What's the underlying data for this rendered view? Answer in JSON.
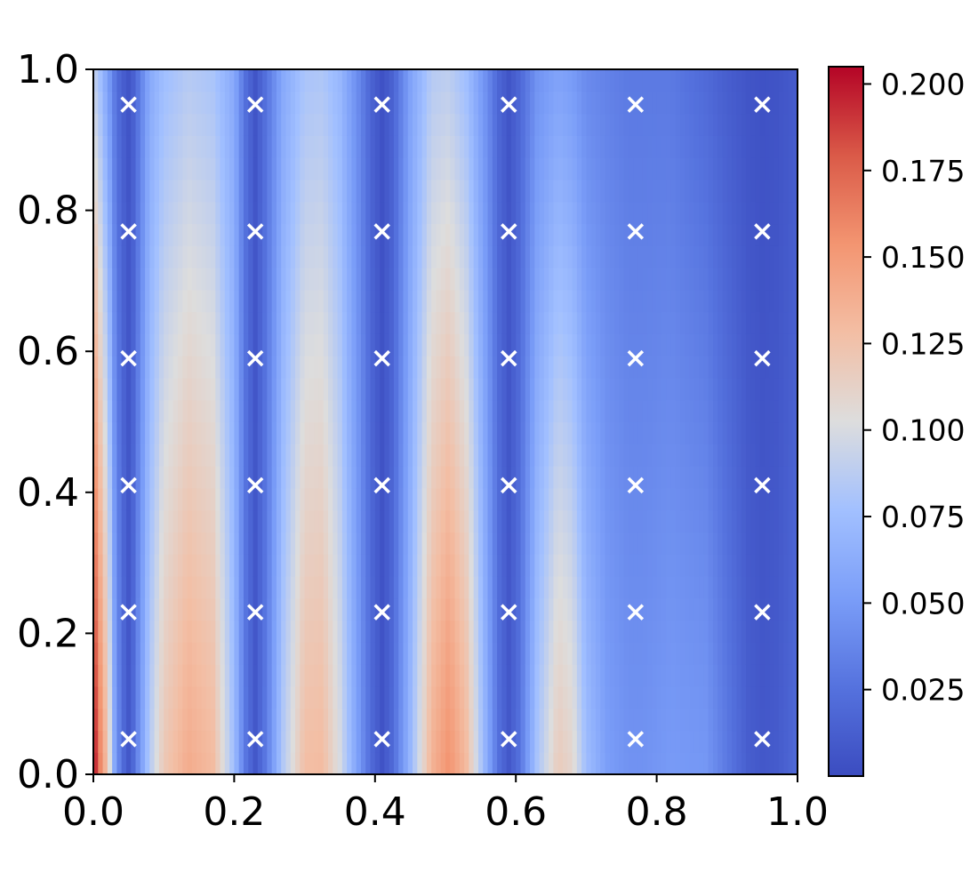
{
  "chart_data": {
    "type": "heatmap",
    "title": "",
    "xlabel": "",
    "ylabel": "",
    "xlim": [
      0.0,
      1.0
    ],
    "ylim": [
      0.0,
      1.0
    ],
    "xticks": [
      "0.0",
      "0.2",
      "0.4",
      "0.6",
      "0.8",
      "1.0"
    ],
    "yticks": [
      "0.0",
      "0.2",
      "0.4",
      "0.6",
      "0.8",
      "1.0"
    ],
    "grid": false,
    "colormap": "coolwarm",
    "colorbar": {
      "vmin": 0.0,
      "vmax": 0.205,
      "ticks": [
        "0.025",
        "0.050",
        "0.075",
        "0.100",
        "0.125",
        "0.150",
        "0.175",
        "0.200"
      ]
    },
    "profile_x": [
      0.0,
      0.004,
      0.01,
      0.017,
      0.024,
      0.03,
      0.037,
      0.045,
      0.05,
      0.055,
      0.065,
      0.08,
      0.1,
      0.135,
      0.17,
      0.2,
      0.215,
      0.23,
      0.245,
      0.27,
      0.3,
      0.325,
      0.35,
      0.38,
      0.395,
      0.41,
      0.425,
      0.45,
      0.48,
      0.505,
      0.53,
      0.56,
      0.575,
      0.59,
      0.605,
      0.63,
      0.66,
      0.68,
      0.7,
      0.73,
      0.76,
      0.77,
      0.78,
      0.82,
      0.87,
      0.9,
      0.93,
      0.95,
      0.97,
      1.0
    ],
    "profile_bottom": [
      0.205,
      0.19,
      0.16,
      0.135,
      0.1,
      0.06,
      0.035,
      0.015,
      0.008,
      0.015,
      0.045,
      0.085,
      0.12,
      0.14,
      0.13,
      0.075,
      0.03,
      0.008,
      0.03,
      0.085,
      0.128,
      0.13,
      0.1,
      0.045,
      0.02,
      0.005,
      0.02,
      0.07,
      0.135,
      0.155,
      0.13,
      0.06,
      0.025,
      0.008,
      0.025,
      0.08,
      0.118,
      0.11,
      0.075,
      0.052,
      0.045,
      0.045,
      0.045,
      0.05,
      0.048,
      0.03,
      0.012,
      0.008,
      0.01,
      0.02
    ],
    "profile_top": [
      0.09,
      0.085,
      0.075,
      0.06,
      0.045,
      0.03,
      0.018,
      0.01,
      0.006,
      0.01,
      0.03,
      0.06,
      0.075,
      0.085,
      0.08,
      0.06,
      0.025,
      0.006,
      0.025,
      0.06,
      0.08,
      0.082,
      0.07,
      0.035,
      0.015,
      0.004,
      0.015,
      0.055,
      0.085,
      0.088,
      0.075,
      0.04,
      0.018,
      0.006,
      0.018,
      0.045,
      0.055,
      0.05,
      0.04,
      0.035,
      0.03,
      0.03,
      0.03,
      0.03,
      0.02,
      0.012,
      0.006,
      0.004,
      0.005,
      0.01
    ],
    "markers": {
      "symbol": "x",
      "color": "#ffffff",
      "x": [
        0.05,
        0.23,
        0.41,
        0.59,
        0.77,
        0.95
      ],
      "y": [
        0.05,
        0.23,
        0.41,
        0.59,
        0.77,
        0.95
      ]
    }
  }
}
